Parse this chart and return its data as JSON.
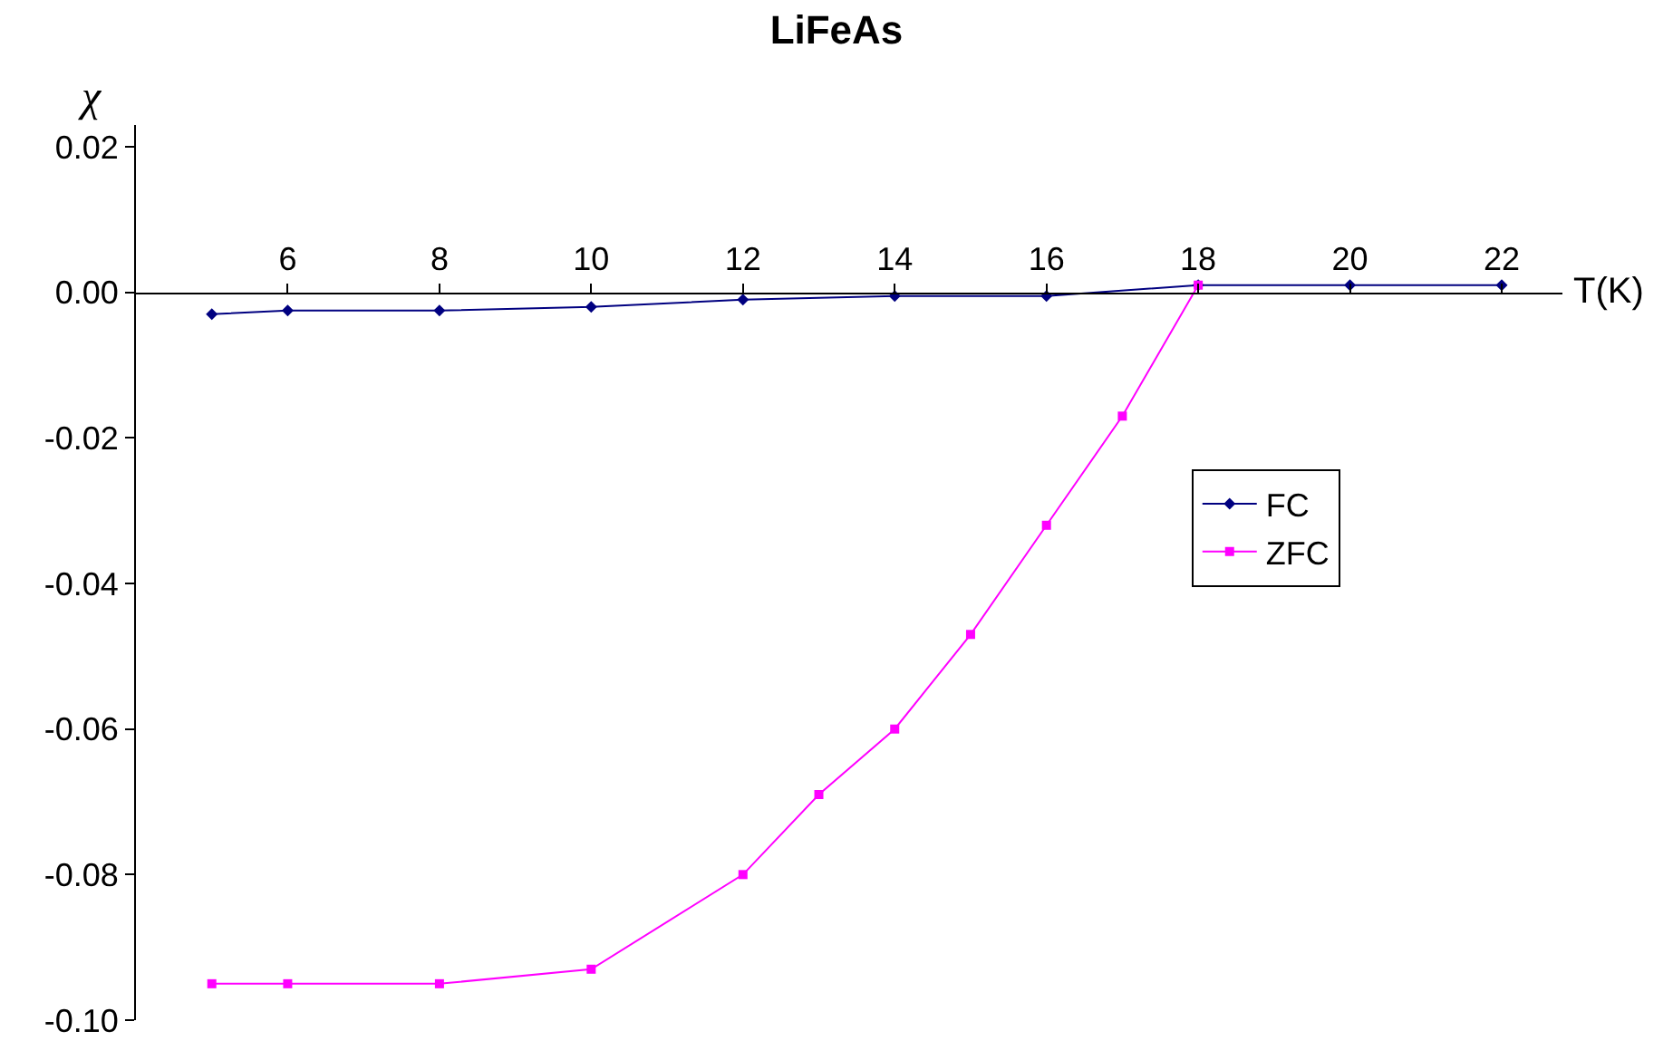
{
  "chart_data": {
    "type": "line",
    "title": "LiFeAs",
    "xlabel": "T(K)",
    "ylabel": "χ",
    "xlim": [
      4,
      22.8
    ],
    "xticks": [
      6,
      8,
      10,
      12,
      14,
      16,
      18,
      20,
      22
    ],
    "ylim": [
      -0.1,
      0.023
    ],
    "yticks": [
      {
        "value": 0.02,
        "label": "0.02"
      },
      {
        "value": 0,
        "label": "0.00"
      },
      {
        "value": -0.02,
        "label": "-0.02"
      },
      {
        "value": -0.04,
        "label": "-0.04"
      },
      {
        "value": -0.06,
        "label": "-0.06"
      },
      {
        "value": -0.08,
        "label": "-0.08"
      },
      {
        "value": -0.1,
        "label": "-0.10"
      }
    ],
    "legend": "right",
    "series": [
      {
        "name": "FC",
        "color": "#000080",
        "marker": "diamond",
        "x": [
          5,
          6,
          8,
          10,
          12,
          14,
          16,
          18,
          20,
          22
        ],
        "values": [
          -0.003,
          -0.0025,
          -0.0025,
          -0.002,
          -0.001,
          -0.0005,
          -0.0005,
          0.001,
          0.001,
          0.001
        ]
      },
      {
        "name": "ZFC",
        "color": "#ff00ff",
        "marker": "square",
        "x": [
          5,
          6,
          8,
          10,
          12,
          13,
          14,
          15,
          16,
          17,
          18
        ],
        "values": [
          -0.095,
          -0.095,
          -0.095,
          -0.093,
          -0.08,
          -0.069,
          -0.06,
          -0.047,
          -0.032,
          -0.017,
          0.001
        ]
      }
    ]
  }
}
